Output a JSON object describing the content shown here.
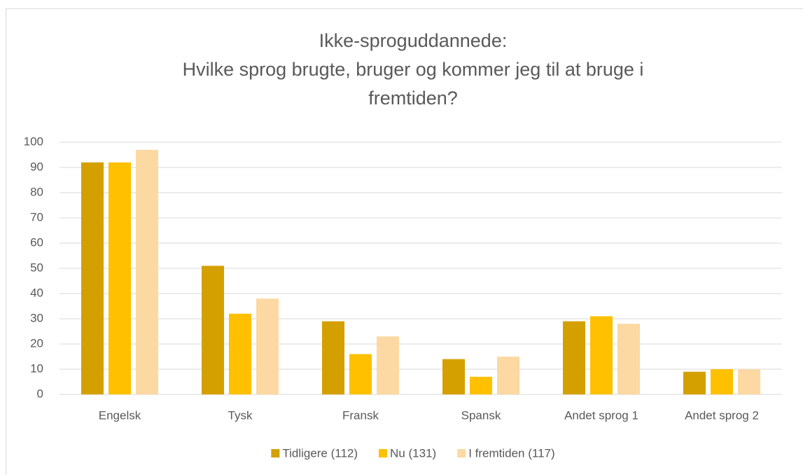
{
  "chart_data": {
    "type": "bar",
    "title": [
      "Ikke-sproguddannede:",
      "Hvilke sprog brugte, bruger og kommer jeg til at bruge i",
      "fremtiden?"
    ],
    "categories": [
      "Engelsk",
      "Tysk",
      "Fransk",
      "Spansk",
      "Andet sprog 1",
      "Andet sprog 2"
    ],
    "series": [
      {
        "name": "Tidligere (112)",
        "color": "#d4a000",
        "values": [
          92,
          51,
          29,
          14,
          29,
          9
        ]
      },
      {
        "name": "Nu (131)",
        "color": "#ffc000",
        "values": [
          92,
          32,
          16,
          7,
          31,
          10
        ]
      },
      {
        "name": "I fremtiden (117)",
        "color": "#fcd9a2",
        "values": [
          97,
          38,
          23,
          15,
          28,
          10
        ]
      }
    ],
    "ylim": [
      0,
      100
    ],
    "yticks": [
      0,
      10,
      20,
      30,
      40,
      50,
      60,
      70,
      80,
      90,
      100
    ],
    "grid": true,
    "legend": "bottom"
  }
}
